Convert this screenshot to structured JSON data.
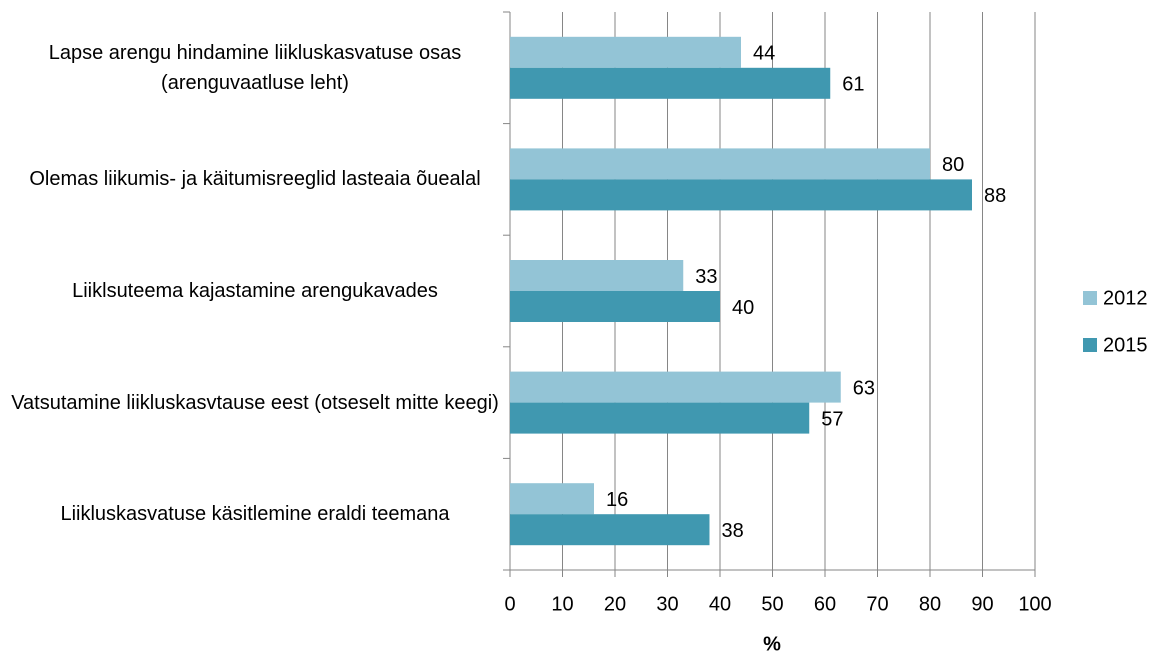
{
  "chart_data": {
    "type": "hbar",
    "categories": [
      "Lapse arengu hindamine liikluskasvatuse osas (arenguvaatluse leht)",
      "Olemas liikumis- ja käitumisreeglid lasteaia õuealal",
      "Liiklsuteema kajastamine arengukavades",
      "Vatsutamine liikluskasvtause eest (otseselt mitte keegi)",
      "Liikluskasvatuse käsitlemine eraldi teemana"
    ],
    "series": [
      {
        "name": "2012",
        "color": "#93c4d6",
        "values": [
          44,
          80,
          33,
          63,
          16
        ]
      },
      {
        "name": "2015",
        "color": "#4098b0",
        "values": [
          61,
          88,
          40,
          57,
          38
        ]
      }
    ],
    "xlabel": "%",
    "xlim": [
      0,
      100
    ],
    "xticks": [
      0,
      10,
      20,
      30,
      40,
      50,
      60,
      70,
      80,
      90,
      100
    ],
    "grid": true,
    "legend": "right"
  }
}
